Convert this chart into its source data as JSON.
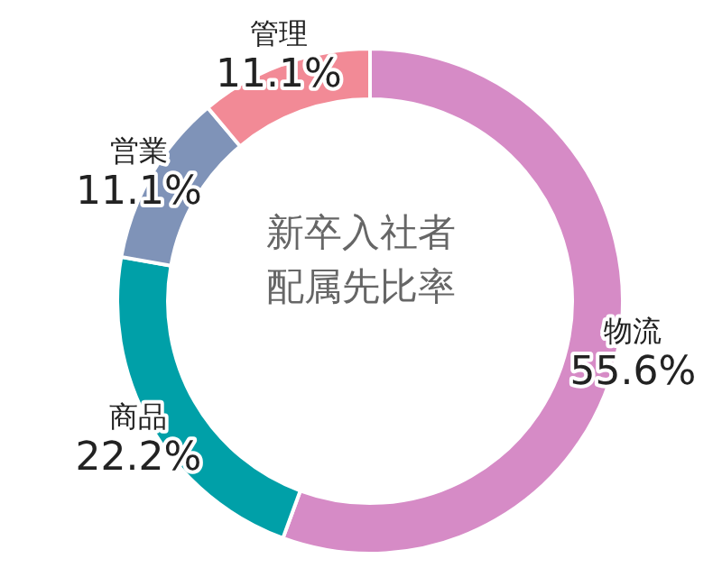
{
  "chart_data": {
    "type": "donut",
    "title": "新卒入社者配属先比率",
    "categories": [
      "物流",
      "商品",
      "営業",
      "管理"
    ],
    "values": [
      55.6,
      22.2,
      11.1,
      11.1
    ],
    "colors": [
      "#d68bc6",
      "#00a0a8",
      "#7f93b8",
      "#f28a96"
    ],
    "value_labels": [
      "55.6%",
      "22.2%",
      "11.1%",
      "11.1%"
    ]
  }
}
